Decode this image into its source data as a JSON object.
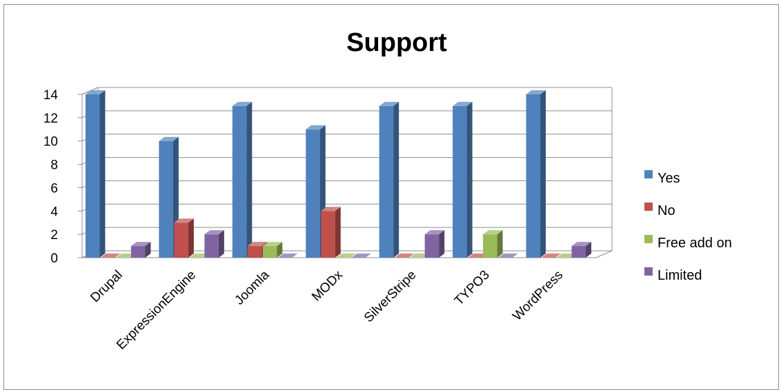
{
  "chart_data": {
    "type": "bar",
    "title": "Support",
    "xlabel": "",
    "ylabel": "",
    "ylim": [
      0,
      14
    ],
    "yticks": [
      0,
      2,
      4,
      6,
      8,
      10,
      12,
      14
    ],
    "grid": true,
    "style": "3d-clustered-column",
    "legend_position": "right",
    "categories": [
      "Drupal",
      "ExpressionEngine",
      "Joomla",
      "MODx",
      "SilverStripe",
      "TYPO3",
      "WordPress"
    ],
    "series": [
      {
        "name": "Yes",
        "color": "#4f81bd",
        "values": [
          14,
          10,
          13,
          11,
          13,
          13,
          14
        ]
      },
      {
        "name": "No",
        "color": "#c0504d",
        "values": [
          0,
          3,
          1,
          4,
          0,
          0,
          0
        ]
      },
      {
        "name": "Free add on",
        "color": "#9bbb59",
        "values": [
          0,
          0,
          1,
          0,
          0,
          2,
          0
        ]
      },
      {
        "name": "Limited",
        "color": "#8064a2",
        "values": [
          1,
          2,
          0,
          0,
          2,
          0,
          1
        ]
      }
    ]
  }
}
